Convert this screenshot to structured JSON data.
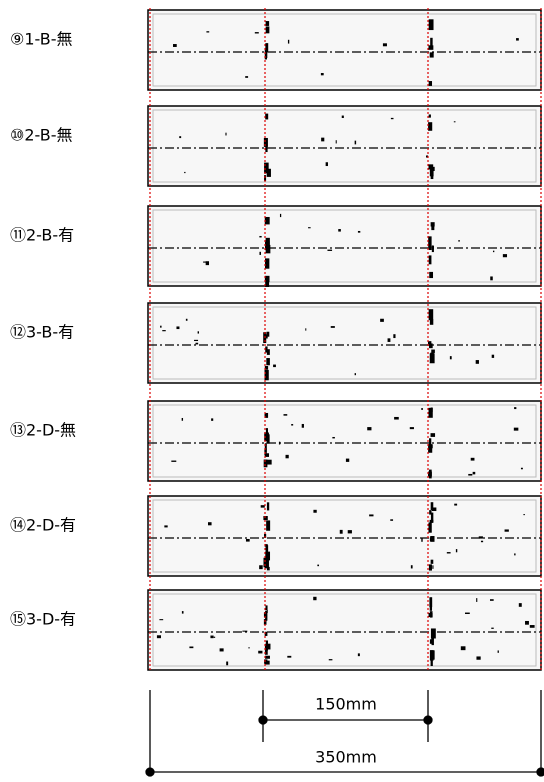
{
  "panels": [
    {
      "label": "⑨1-B-無"
    },
    {
      "label": "⑩2-B-無"
    },
    {
      "label": "⑪2-B-有"
    },
    {
      "label": "⑫3-B-有"
    },
    {
      "label": "⑬2-D-無"
    },
    {
      "label": "⑭2-D-有"
    },
    {
      "label": "⑮3-D-有"
    }
  ],
  "dimensions": {
    "inner": "150mm",
    "outer": "350mm"
  }
}
